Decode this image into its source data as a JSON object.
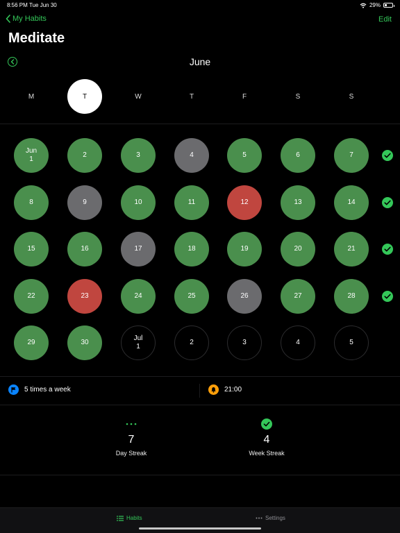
{
  "status": {
    "time": "8:56 PM",
    "date": "Tue Jun 30",
    "battery": "29%"
  },
  "nav": {
    "back_label": "My Habits",
    "edit_label": "Edit"
  },
  "habit": {
    "title": "Meditate"
  },
  "month": {
    "title": "June"
  },
  "weekdays": [
    {
      "label": "M",
      "today": false
    },
    {
      "label": "T",
      "today": true
    },
    {
      "label": "W",
      "today": false
    },
    {
      "label": "T",
      "today": false
    },
    {
      "label": "F",
      "today": false
    },
    {
      "label": "S",
      "today": false
    },
    {
      "label": "S",
      "today": false
    }
  ],
  "weeks": [
    {
      "complete": true,
      "days": [
        {
          "month": "Jun",
          "day": "1",
          "state": "done"
        },
        {
          "day": "2",
          "state": "done"
        },
        {
          "day": "3",
          "state": "done"
        },
        {
          "day": "4",
          "state": "skipped"
        },
        {
          "day": "5",
          "state": "done"
        },
        {
          "day": "6",
          "state": "done"
        },
        {
          "day": "7",
          "state": "done"
        }
      ]
    },
    {
      "complete": true,
      "days": [
        {
          "day": "8",
          "state": "done"
        },
        {
          "day": "9",
          "state": "skipped"
        },
        {
          "day": "10",
          "state": "done"
        },
        {
          "day": "11",
          "state": "done"
        },
        {
          "day": "12",
          "state": "missed"
        },
        {
          "day": "13",
          "state": "done"
        },
        {
          "day": "14",
          "state": "done"
        }
      ]
    },
    {
      "complete": true,
      "days": [
        {
          "day": "15",
          "state": "done"
        },
        {
          "day": "16",
          "state": "done"
        },
        {
          "day": "17",
          "state": "skipped"
        },
        {
          "day": "18",
          "state": "done"
        },
        {
          "day": "19",
          "state": "done"
        },
        {
          "day": "20",
          "state": "done"
        },
        {
          "day": "21",
          "state": "done"
        }
      ]
    },
    {
      "complete": true,
      "days": [
        {
          "day": "22",
          "state": "done"
        },
        {
          "day": "23",
          "state": "missed"
        },
        {
          "day": "24",
          "state": "done"
        },
        {
          "day": "25",
          "state": "done"
        },
        {
          "day": "26",
          "state": "skipped"
        },
        {
          "day": "27",
          "state": "done"
        },
        {
          "day": "28",
          "state": "done"
        }
      ]
    },
    {
      "complete": false,
      "days": [
        {
          "day": "29",
          "state": "done"
        },
        {
          "day": "30",
          "state": "done"
        },
        {
          "month": "Jul",
          "day": "1",
          "state": "future"
        },
        {
          "day": "2",
          "state": "future"
        },
        {
          "day": "3",
          "state": "future"
        },
        {
          "day": "4",
          "state": "future"
        },
        {
          "day": "5",
          "state": "future"
        }
      ]
    }
  ],
  "frequency": {
    "label": "5 times a week",
    "icon": "flag-icon",
    "color": "#0a84ff"
  },
  "reminder": {
    "label": "21:00",
    "icon": "bell-icon",
    "color": "#ff9f0a"
  },
  "streaks": {
    "day": {
      "value": "7",
      "label": "Day Streak",
      "icon": "dots-icon"
    },
    "week": {
      "value": "4",
      "label": "Week Streak",
      "icon": "check-circle-icon"
    }
  },
  "tabs": [
    {
      "label": "Habits",
      "icon": "list-icon",
      "active": true
    },
    {
      "label": "Settings",
      "icon": "more-icon",
      "active": false
    }
  ],
  "colors": {
    "accent": "#34c759",
    "done": "#4a8f4d",
    "skipped": "#6b6b6e",
    "missed": "#c0463f"
  }
}
